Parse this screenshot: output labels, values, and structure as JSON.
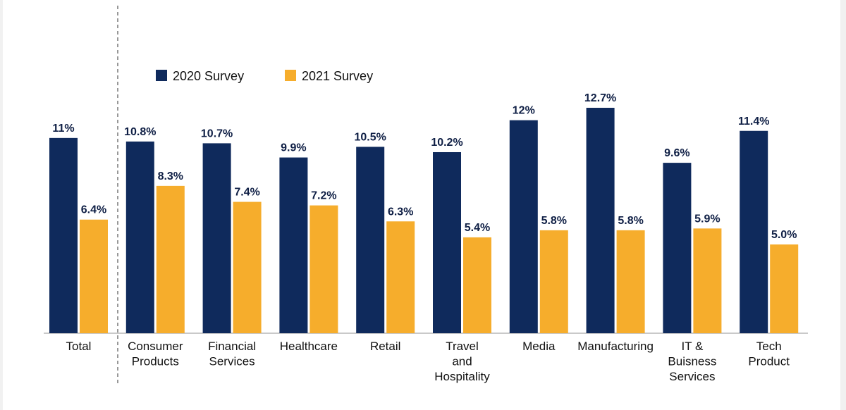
{
  "chart_data": {
    "type": "bar",
    "categories": [
      [
        "Total"
      ],
      [
        "Consumer",
        "Products"
      ],
      [
        "Financial",
        "Services"
      ],
      [
        "Healthcare"
      ],
      [
        "Retail"
      ],
      [
        "Travel",
        "and",
        "Hospitality"
      ],
      [
        "Media"
      ],
      [
        "Manufacturing"
      ],
      [
        "IT &",
        "Buisness",
        "Services"
      ],
      [
        "Tech",
        "Product"
      ]
    ],
    "series": [
      {
        "name": "2020 Survey",
        "color": "#0f2a5c",
        "values": [
          11.0,
          10.8,
          10.7,
          9.9,
          10.5,
          10.2,
          12.0,
          12.7,
          9.6,
          11.4
        ],
        "labels": [
          "11%",
          "10.8%",
          "10.7%",
          "9.9%",
          "10.5%",
          "10.2%",
          "12%",
          "12.7%",
          "9.6%",
          "11.4%"
        ]
      },
      {
        "name": "2021 Survey",
        "color": "#f6ad2c",
        "values": [
          6.4,
          8.3,
          7.4,
          7.2,
          6.3,
          5.4,
          5.8,
          5.8,
          5.9,
          5.0
        ],
        "labels": [
          "6.4%",
          "8.3%",
          "7.4%",
          "7.2%",
          "6.3%",
          "5.4%",
          "5.8%",
          "5.8%",
          "5.9%",
          "5.0%"
        ]
      }
    ],
    "ylim": [
      0,
      12.7
    ],
    "grid": false,
    "legend_position": "top-left",
    "separator_after_category": 0
  }
}
